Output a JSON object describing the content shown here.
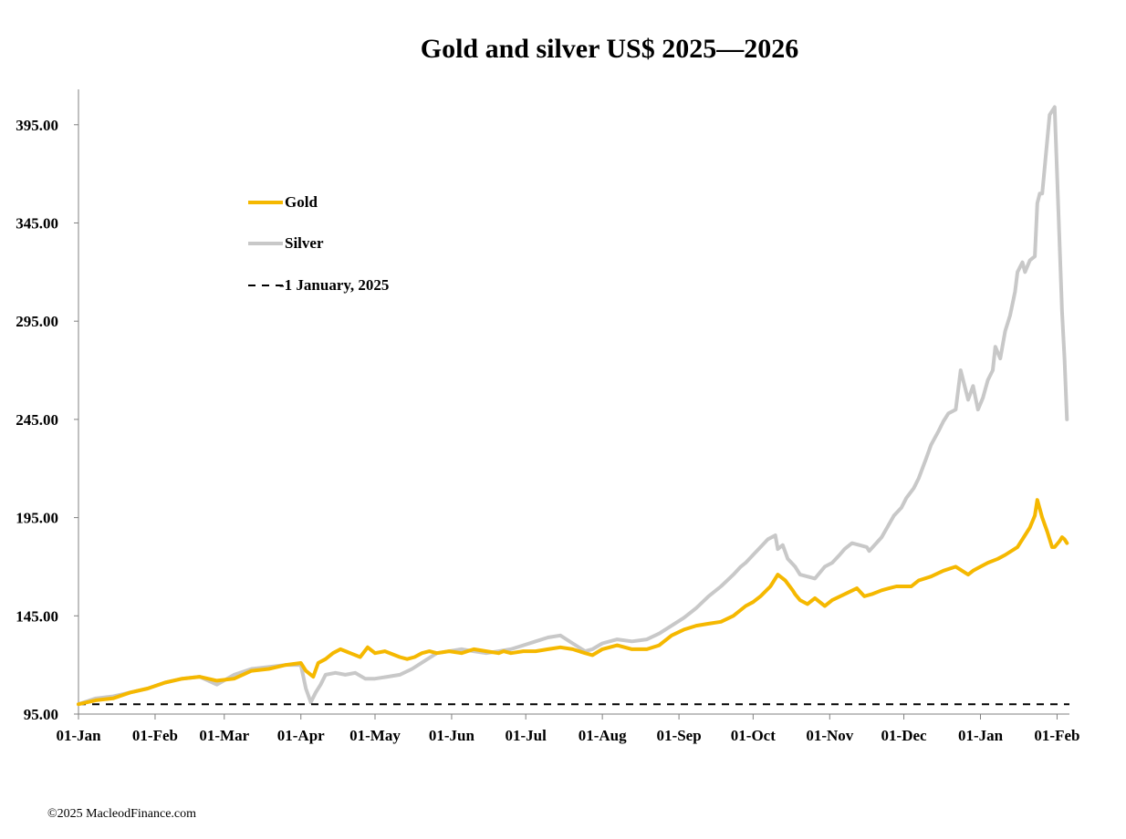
{
  "chart_data": {
    "type": "line",
    "title": "Gold and silver  US$ 2025—2026",
    "xlabel": "",
    "ylabel": "",
    "ylim": [
      95,
      413
    ],
    "y_ticks": [
      "95.00",
      "145.00",
      "195.00",
      "245.00",
      "295.00",
      "345.00",
      "395.00"
    ],
    "y_tick_values": [
      95,
      145,
      195,
      245,
      295,
      345,
      395
    ],
    "x_ticks": [
      "01-Jan",
      "01-Feb",
      "01-Mar",
      "01-Apr",
      "01-May",
      "01-Jun",
      "01-Jul",
      "01-Aug",
      "01-Sep",
      "01-Oct",
      "01-Nov",
      "01-Dec",
      "01-Jan",
      "01-Feb"
    ],
    "x_tick_days": [
      0,
      31,
      59,
      90,
      120,
      151,
      181,
      212,
      243,
      273,
      304,
      334,
      365,
      396
    ],
    "xlim_days": [
      0,
      401
    ],
    "grid": false,
    "legend": "upper-left inside plot",
    "series": [
      {
        "name": "Gold",
        "color": "#F5B800",
        "style": "solid",
        "days": [
          0,
          7,
          14,
          21,
          28,
          35,
          42,
          49,
          56,
          63,
          70,
          77,
          84,
          90,
          92,
          95,
          97,
          100,
          103,
          106,
          110,
          114,
          117,
          120,
          124,
          128,
          130,
          133,
          136,
          139,
          142,
          145,
          150,
          155,
          160,
          165,
          170,
          172,
          175,
          180,
          185,
          190,
          195,
          200,
          205,
          208,
          212,
          218,
          224,
          230,
          235,
          240,
          245,
          250,
          255,
          260,
          265,
          270,
          273,
          276,
          280,
          283,
          286,
          289,
          290,
          292,
          295,
          298,
          302,
          305,
          310,
          315,
          318,
          321,
          325,
          328,
          331,
          334,
          337,
          340,
          345,
          350,
          355,
          360,
          362,
          365,
          368,
          372,
          375,
          380,
          383,
          385,
          387,
          388,
          390,
          392,
          394,
          395,
          397,
          398,
          399,
          400
        ],
        "values": [
          100,
          102,
          103,
          106,
          108,
          111,
          113,
          114,
          112,
          113,
          117,
          118,
          120,
          121,
          117,
          114,
          121,
          123,
          126,
          128,
          126,
          124,
          129,
          126,
          127,
          125,
          124,
          123,
          124,
          126,
          127,
          126,
          127,
          126,
          128,
          127,
          126,
          127,
          126,
          127,
          127,
          128,
          129,
          128,
          126,
          125,
          128,
          130,
          128,
          128,
          130,
          135,
          138,
          140,
          141,
          142,
          145,
          150,
          152,
          155,
          160,
          166,
          163,
          158,
          156,
          153,
          151,
          154,
          150,
          153,
          156,
          159,
          155,
          156,
          158,
          159,
          160,
          160,
          160,
          163,
          165,
          168,
          170,
          166,
          168,
          170,
          172,
          174,
          176,
          180,
          186,
          190,
          196,
          204,
          195,
          188,
          180,
          180,
          183,
          185,
          184,
          182
        ]
      },
      {
        "name": "Silver",
        "color": "#C8C8C8",
        "style": "solid",
        "days": [
          0,
          7,
          14,
          21,
          28,
          35,
          42,
          49,
          56,
          63,
          70,
          77,
          84,
          90,
          92,
          94,
          96,
          98,
          100,
          104,
          108,
          112,
          116,
          120,
          125,
          130,
          135,
          140,
          145,
          150,
          155,
          160,
          165,
          170,
          175,
          180,
          185,
          190,
          195,
          200,
          205,
          208,
          212,
          218,
          224,
          230,
          235,
          240,
          245,
          250,
          255,
          260,
          265,
          268,
          270,
          273,
          276,
          279,
          282,
          283,
          285,
          287,
          290,
          292,
          295,
          298,
          300,
          302,
          305,
          308,
          310,
          313,
          316,
          319,
          320,
          325,
          330,
          333,
          335,
          338,
          340,
          343,
          345,
          348,
          350,
          352,
          355,
          357,
          360,
          362,
          364,
          366,
          368,
          370,
          371,
          373,
          375,
          377,
          379,
          380,
          382,
          383,
          385,
          387,
          388,
          389,
          390,
          393,
          395,
          398,
          399,
          400
        ],
        "values": [
          100,
          103,
          104,
          106,
          108,
          111,
          113,
          114,
          110,
          115,
          118,
          119,
          120,
          120,
          108,
          101,
          106,
          110,
          115,
          116,
          115,
          116,
          113,
          113,
          114,
          115,
          118,
          122,
          126,
          127,
          128,
          127,
          126,
          127,
          128,
          130,
          132,
          134,
          135,
          131,
          127,
          128,
          131,
          133,
          132,
          133,
          136,
          140,
          144,
          149,
          155,
          160,
          166,
          170,
          172,
          176,
          180,
          184,
          186,
          179,
          181,
          174,
          170,
          166,
          165,
          164,
          167,
          170,
          172,
          176,
          179,
          182,
          181,
          180,
          178,
          185,
          196,
          200,
          205,
          210,
          215,
          225,
          232,
          239,
          244,
          248,
          250,
          270,
          255,
          262,
          250,
          256,
          265,
          270,
          282,
          276,
          290,
          298,
          310,
          320,
          325,
          320,
          326,
          328,
          355,
          360,
          360,
          400,
          404,
          300,
          276,
          245
        ]
      },
      {
        "name": "1 January, 2025",
        "color": "#000000",
        "style": "dashed",
        "days": [
          0,
          401
        ],
        "values": [
          100,
          100
        ]
      }
    ]
  },
  "footer": "©2025 MacleodFinance.com"
}
